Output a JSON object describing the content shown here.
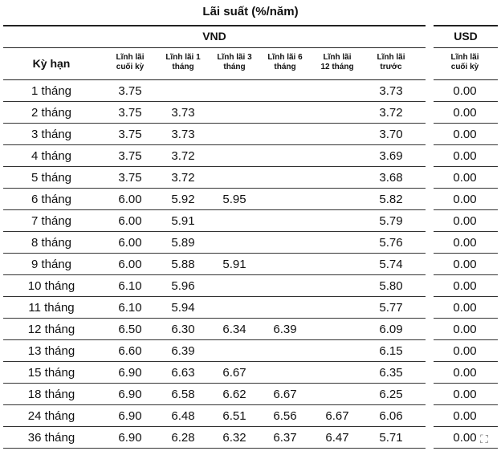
{
  "title": "Lãi suất (%/năm)",
  "groups": {
    "vnd": "VND",
    "usd": "USD"
  },
  "term_header": "Kỳ hạn",
  "vnd_columns": [
    [
      "Lĩnh lãi",
      "cuối kỳ"
    ],
    [
      "Lĩnh lãi 1",
      "tháng"
    ],
    [
      "Lĩnh lãi 3",
      "tháng"
    ],
    [
      "Lĩnh lãi 6",
      "tháng"
    ],
    [
      "Lĩnh lãi",
      "12 tháng"
    ],
    [
      "Lĩnh lãi",
      "trước"
    ]
  ],
  "usd_columns": [
    [
      "Lĩnh lãi",
      "cuối kỳ"
    ]
  ],
  "rows": [
    [
      "1 tháng",
      "3.75",
      "",
      "",
      "",
      "",
      "3.73",
      "0.00"
    ],
    [
      "2 tháng",
      "3.75",
      "3.73",
      "",
      "",
      "",
      "3.72",
      "0.00"
    ],
    [
      "3 tháng",
      "3.75",
      "3.73",
      "",
      "",
      "",
      "3.70",
      "0.00"
    ],
    [
      "4 tháng",
      "3.75",
      "3.72",
      "",
      "",
      "",
      "3.69",
      "0.00"
    ],
    [
      "5 tháng",
      "3.75",
      "3.72",
      "",
      "",
      "",
      "3.68",
      "0.00"
    ],
    [
      "6 tháng",
      "6.00",
      "5.92",
      "5.95",
      "",
      "",
      "5.82",
      "0.00"
    ],
    [
      "7 tháng",
      "6.00",
      "5.91",
      "",
      "",
      "",
      "5.79",
      "0.00"
    ],
    [
      "8 tháng",
      "6.00",
      "5.89",
      "",
      "",
      "",
      "5.76",
      "0.00"
    ],
    [
      "9 tháng",
      "6.00",
      "5.88",
      "5.91",
      "",
      "",
      "5.74",
      "0.00"
    ],
    [
      "10 tháng",
      "6.10",
      "5.96",
      "",
      "",
      "",
      "5.80",
      "0.00"
    ],
    [
      "11 tháng",
      "6.10",
      "5.94",
      "",
      "",
      "",
      "5.77",
      "0.00"
    ],
    [
      "12 tháng",
      "6.50",
      "6.30",
      "6.34",
      "6.39",
      "",
      "6.09",
      "0.00"
    ],
    [
      "13 tháng",
      "6.60",
      "6.39",
      "",
      "",
      "",
      "6.15",
      "0.00"
    ],
    [
      "15 tháng",
      "6.90",
      "6.63",
      "6.67",
      "",
      "",
      "6.35",
      "0.00"
    ],
    [
      "18 tháng",
      "6.90",
      "6.58",
      "6.62",
      "6.67",
      "",
      "6.25",
      "0.00"
    ],
    [
      "24 tháng",
      "6.90",
      "6.48",
      "6.51",
      "6.56",
      "6.67",
      "6.06",
      "0.00"
    ],
    [
      "36 tháng",
      "6.90",
      "6.28",
      "6.32",
      "6.37",
      "6.47",
      "5.71",
      "0.00"
    ]
  ],
  "corner_icon": "crop-frame-icon"
}
